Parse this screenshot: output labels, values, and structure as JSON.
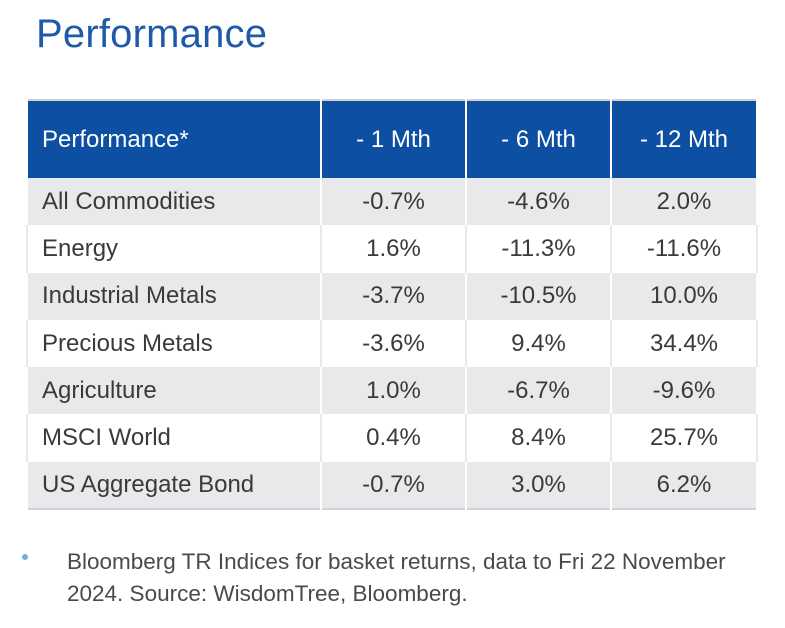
{
  "title": "Performance",
  "table": {
    "headers": [
      "Performance*",
      "- 1 Mth",
      "- 6 Mth",
      "- 12 Mth"
    ],
    "rows": [
      {
        "name": "All Commodities",
        "m1": "-0.7%",
        "m6": "-4.6%",
        "m12": "2.0%"
      },
      {
        "name": "Energy",
        "m1": "1.6%",
        "m6": "-11.3%",
        "m12": "-11.6%"
      },
      {
        "name": "Industrial Metals",
        "m1": "-3.7%",
        "m6": "-10.5%",
        "m12": "10.0%"
      },
      {
        "name": "Precious Metals",
        "m1": "-3.6%",
        "m6": "9.4%",
        "m12": "34.4%"
      },
      {
        "name": "Agriculture",
        "m1": "1.0%",
        "m6": "-6.7%",
        "m12": "-9.6%"
      },
      {
        "name": "MSCI World",
        "m1": "0.4%",
        "m6": "8.4%",
        "m12": "25.7%"
      },
      {
        "name": "US Aggregate Bond",
        "m1": "-0.7%",
        "m6": "3.0%",
        "m12": "6.2%"
      }
    ]
  },
  "note": "Bloomberg TR Indices for basket returns, data to Fri 22 November 2024. Source: WisdomTree, Bloomberg.",
  "colors": {
    "title": "#1f5aa8",
    "header_bg": "#0d4fa3",
    "row_alt_bg": "#e8e9eb",
    "bullet": "#6db3d9"
  }
}
